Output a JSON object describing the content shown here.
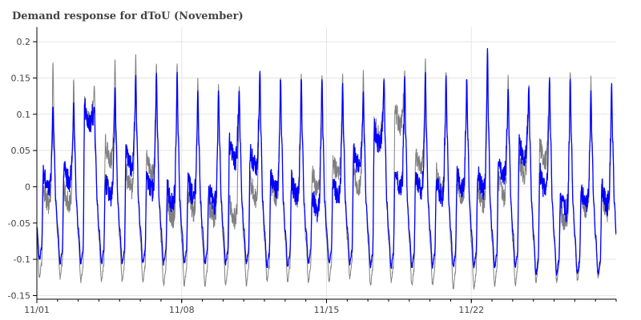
{
  "chart_data": {
    "type": "line",
    "title": "Demand response for dToU (November)",
    "xlabel": "",
    "ylabel": "",
    "x_start": "2013-11-01",
    "x_end": "2013-11-29",
    "x_ticks": [
      {
        "date": "2013-11-01",
        "label": "11/01"
      },
      {
        "date": "2013-11-08",
        "label": "11/08"
      },
      {
        "date": "2013-11-15",
        "label": "11/15"
      },
      {
        "date": "2013-11-22",
        "label": "11/22"
      }
    ],
    "ylim": [
      -0.155,
      0.22
    ],
    "y_ticks": [
      {
        "value": 0.2,
        "label": "0.2"
      },
      {
        "value": 0.15,
        "label": "0.15"
      },
      {
        "value": 0.1,
        "label": "0.1"
      },
      {
        "value": 0.05,
        "label": "0.05"
      },
      {
        "value": 0,
        "label": "0"
      },
      {
        "value": -0.05,
        "label": "-0.05"
      },
      {
        "value": -0.1,
        "label": "-0.1"
      },
      {
        "value": -0.15,
        "label": "-0.15"
      }
    ],
    "grid": true,
    "legend": "none",
    "series": [
      {
        "color": "#808080",
        "daily": [
          {
            "date": "2013-11-01",
            "evening_peak": 0.172,
            "midday": -0.02,
            "night_min": -0.125
          },
          {
            "date": "2013-11-02",
            "evening_peak": 0.15,
            "midday": -0.02,
            "night_min": -0.125
          },
          {
            "date": "2013-11-03",
            "evening_peak": 0.14,
            "midday": 0.09,
            "night_min": -0.13
          },
          {
            "date": "2013-11-04",
            "evening_peak": 0.175,
            "midday": 0.04,
            "night_min": -0.13
          },
          {
            "date": "2013-11-05",
            "evening_peak": 0.184,
            "midday": 0.0,
            "night_min": -0.13
          },
          {
            "date": "2013-11-06",
            "evening_peak": 0.17,
            "midday": 0.02,
            "night_min": -0.13
          },
          {
            "date": "2013-11-07",
            "evening_peak": 0.17,
            "midday": -0.04,
            "night_min": -0.135
          },
          {
            "date": "2013-11-08",
            "evening_peak": 0.15,
            "midday": -0.03,
            "night_min": -0.135
          },
          {
            "date": "2013-11-09",
            "evening_peak": 0.14,
            "midday": -0.04,
            "night_min": -0.135
          },
          {
            "date": "2013-11-10",
            "evening_peak": 0.14,
            "midday": -0.04,
            "night_min": -0.135
          },
          {
            "date": "2013-11-11",
            "evening_peak": 0.16,
            "midday": -0.01,
            "night_min": -0.135
          },
          {
            "date": "2013-11-12",
            "evening_peak": 0.15,
            "midday": -0.01,
            "night_min": -0.13
          },
          {
            "date": "2013-11-13",
            "evening_peak": 0.155,
            "midday": -0.01,
            "night_min": -0.13
          },
          {
            "date": "2013-11-14",
            "evening_peak": 0.155,
            "midday": 0.0,
            "night_min": -0.13
          },
          {
            "date": "2013-11-15",
            "evening_peak": 0.155,
            "midday": 0.02,
            "night_min": -0.13
          },
          {
            "date": "2013-11-16",
            "evening_peak": 0.16,
            "midday": 0.0,
            "night_min": -0.125
          },
          {
            "date": "2013-11-17",
            "evening_peak": 0.15,
            "midday": 0.07,
            "night_min": -0.135
          },
          {
            "date": "2013-11-18",
            "evening_peak": 0.16,
            "midday": 0.09,
            "night_min": -0.13
          },
          {
            "date": "2013-11-19",
            "evening_peak": 0.175,
            "midday": 0.03,
            "night_min": -0.135
          },
          {
            "date": "2013-11-20",
            "evening_peak": 0.16,
            "midday": 0.0,
            "night_min": -0.135
          },
          {
            "date": "2013-11-21",
            "evening_peak": 0.15,
            "midday": -0.01,
            "night_min": -0.14
          },
          {
            "date": "2013-11-22",
            "evening_peak": 0.16,
            "midday": -0.02,
            "night_min": -0.14
          },
          {
            "date": "2013-11-23",
            "evening_peak": 0.155,
            "midday": -0.01,
            "night_min": -0.135
          },
          {
            "date": "2013-11-24",
            "evening_peak": 0.14,
            "midday": 0.02,
            "night_min": -0.135
          },
          {
            "date": "2013-11-25",
            "evening_peak": 0.15,
            "midday": 0.04,
            "night_min": -0.13
          },
          {
            "date": "2013-11-26",
            "evening_peak": 0.16,
            "midday": -0.05,
            "night_min": -0.13
          },
          {
            "date": "2013-11-27",
            "evening_peak": 0.15,
            "midday": -0.03,
            "night_min": -0.13
          },
          {
            "date": "2013-11-28",
            "evening_peak": 0.13,
            "midday": -0.03,
            "night_min": -0.125
          }
        ]
      },
      {
        "color": "#0000ff",
        "daily": [
          {
            "date": "2013-11-01",
            "evening_peak": 0.11,
            "midday": 0.0,
            "night_min": -0.1
          },
          {
            "date": "2013-11-02",
            "evening_peak": 0.115,
            "midday": 0.01,
            "night_min": -0.105
          },
          {
            "date": "2013-11-03",
            "evening_peak": 0.11,
            "midday": 0.09,
            "night_min": -0.105
          },
          {
            "date": "2013-11-04",
            "evening_peak": 0.135,
            "midday": -0.01,
            "night_min": -0.105
          },
          {
            "date": "2013-11-05",
            "evening_peak": 0.155,
            "midday": 0.03,
            "night_min": -0.105
          },
          {
            "date": "2013-11-06",
            "evening_peak": 0.155,
            "midday": 0.0,
            "night_min": -0.105
          },
          {
            "date": "2013-11-07",
            "evening_peak": 0.155,
            "midday": -0.02,
            "night_min": -0.105
          },
          {
            "date": "2013-11-08",
            "evening_peak": 0.13,
            "midday": -0.01,
            "night_min": -0.105
          },
          {
            "date": "2013-11-09",
            "evening_peak": 0.135,
            "midday": -0.02,
            "night_min": -0.105
          },
          {
            "date": "2013-11-10",
            "evening_peak": 0.135,
            "midday": 0.04,
            "night_min": -0.105
          },
          {
            "date": "2013-11-11",
            "evening_peak": 0.16,
            "midday": 0.03,
            "night_min": -0.105
          },
          {
            "date": "2013-11-12",
            "evening_peak": 0.15,
            "midday": 0.0,
            "night_min": -0.11
          },
          {
            "date": "2013-11-13",
            "evening_peak": 0.15,
            "midday": -0.01,
            "night_min": -0.11
          },
          {
            "date": "2013-11-14",
            "evening_peak": 0.15,
            "midday": -0.03,
            "night_min": -0.105
          },
          {
            "date": "2013-11-15",
            "evening_peak": 0.14,
            "midday": -0.01,
            "night_min": -0.105
          },
          {
            "date": "2013-11-16",
            "evening_peak": 0.13,
            "midday": 0.03,
            "night_min": -0.105
          },
          {
            "date": "2013-11-17",
            "evening_peak": 0.15,
            "midday": 0.06,
            "night_min": -0.11
          },
          {
            "date": "2013-11-18",
            "evening_peak": 0.15,
            "midday": 0.0,
            "night_min": -0.11
          },
          {
            "date": "2013-11-19",
            "evening_peak": 0.155,
            "midday": 0.0,
            "night_min": -0.11
          },
          {
            "date": "2013-11-20",
            "evening_peak": 0.155,
            "midday": -0.01,
            "night_min": -0.11
          },
          {
            "date": "2013-11-21",
            "evening_peak": 0.15,
            "midday": 0.0,
            "night_min": -0.11
          },
          {
            "date": "2013-11-22",
            "evening_peak": 0.19,
            "midday": 0.0,
            "night_min": -0.11
          },
          {
            "date": "2013-11-23",
            "evening_peak": 0.135,
            "midday": 0.02,
            "night_min": -0.11
          },
          {
            "date": "2013-11-24",
            "evening_peak": 0.14,
            "midday": 0.04,
            "night_min": -0.11
          },
          {
            "date": "2013-11-25",
            "evening_peak": 0.15,
            "midday": 0.0,
            "night_min": -0.12
          },
          {
            "date": "2013-11-26",
            "evening_peak": 0.15,
            "midday": -0.03,
            "night_min": -0.12
          },
          {
            "date": "2013-11-27",
            "evening_peak": 0.13,
            "midday": -0.02,
            "night_min": -0.12
          },
          {
            "date": "2013-11-28",
            "evening_peak": 0.14,
            "midday": -0.02,
            "night_min": -0.12
          }
        ]
      }
    ]
  }
}
